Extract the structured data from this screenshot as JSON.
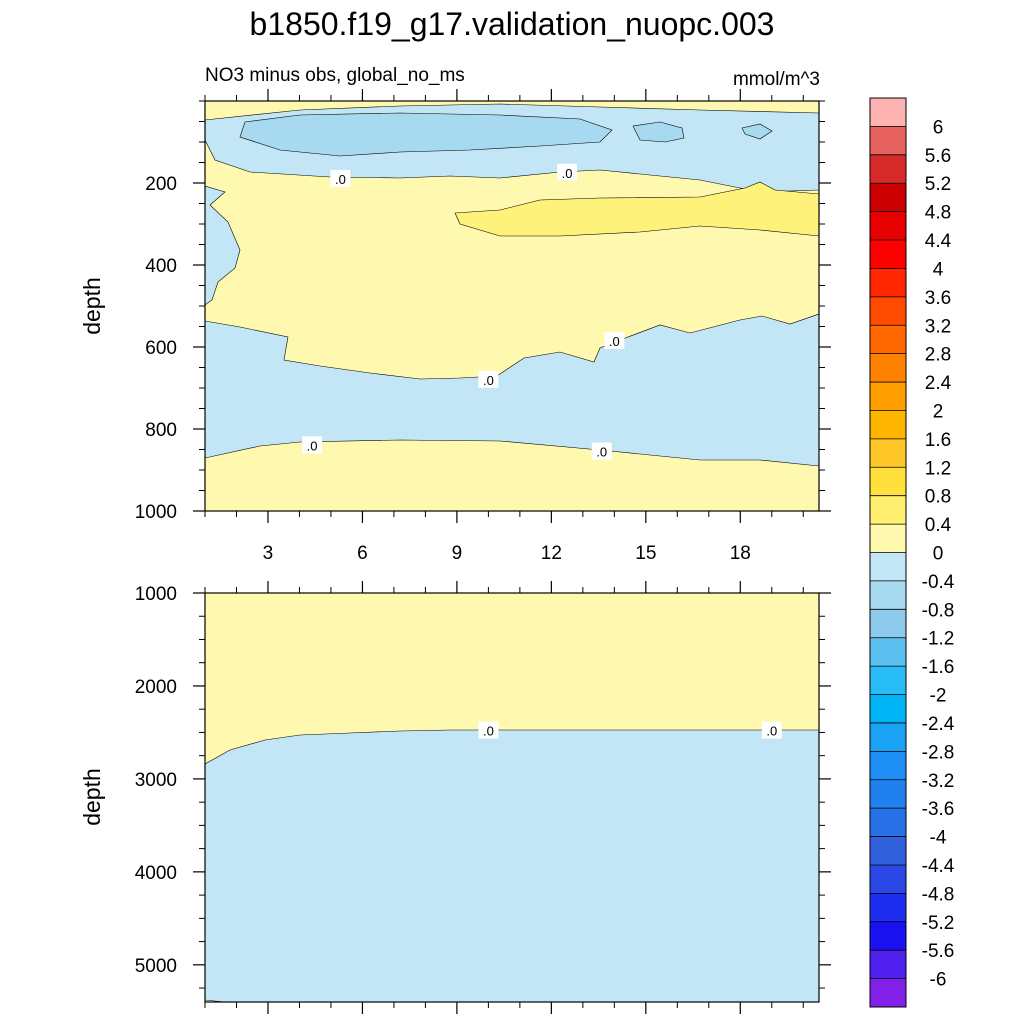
{
  "title": "b1850.f19_g17.validation_nuopc.003",
  "subtitle_left": "NO3 minus obs, global_no_ms",
  "subtitle_right": "mmol/m^3",
  "colors": {
    "neg_fill": "#c2e6f5",
    "neg_deep_fill": "#a7d9f0",
    "pos_fill": "#fff9b0",
    "pos_high_fill": "#fff27a"
  },
  "chart_data": [
    {
      "type": "contour",
      "name": "upper-panel",
      "xlabel": "",
      "ylabel": "depth",
      "xlim": [
        1,
        20.5
      ],
      "ylim": [
        1000,
        0
      ],
      "xticks": [
        3,
        6,
        9,
        12,
        15,
        18
      ],
      "yticks": [
        200,
        400,
        600,
        800,
        1000
      ],
      "contour_labels": [
        {
          "text": ".0",
          "x": 5.3,
          "depth": 190
        },
        {
          "text": ".0",
          "x": 12.5,
          "depth": 175
        },
        {
          "text": ".0",
          "x": 14.0,
          "depth": 585
        },
        {
          "text": ".0",
          "x": 10.0,
          "depth": 680
        },
        {
          "text": ".0",
          "x": 4.4,
          "depth": 840
        },
        {
          "text": ".0",
          "x": 13.6,
          "depth": 855
        }
      ]
    },
    {
      "type": "contour",
      "name": "lower-panel",
      "xlabel": "",
      "ylabel": "depth",
      "xlim": [
        1,
        20.5
      ],
      "ylim": [
        5400,
        1000
      ],
      "xticks": [
        3,
        6,
        9,
        12,
        15,
        18
      ],
      "yticks": [
        1000,
        2000,
        3000,
        4000,
        5000
      ],
      "contour_labels": [
        {
          "text": ".0",
          "x": 10.0,
          "depth": 2480
        },
        {
          "text": ".0",
          "x": 19.0,
          "depth": 2480
        }
      ]
    }
  ],
  "colorbar": {
    "levels": [
      "6",
      "5.6",
      "5.2",
      "4.8",
      "4.4",
      "4",
      "3.6",
      "3.2",
      "2.8",
      "2.4",
      "2",
      "1.6",
      "1.2",
      "0.8",
      "0.4",
      "0",
      "-0.4",
      "-0.8",
      "-1.2",
      "-1.6",
      "-2",
      "-2.4",
      "-2.8",
      "-3.2",
      "-3.6",
      "-4",
      "-4.4",
      "-4.8",
      "-5.2",
      "-5.6",
      "-6"
    ],
    "colors": [
      "#ffb2b2",
      "#e96262",
      "#d72a2a",
      "#cc0000",
      "#e60000",
      "#ff0000",
      "#ff2600",
      "#ff4c00",
      "#ff6a00",
      "#ff8200",
      "#ffa000",
      "#ffb400",
      "#ffc828",
      "#ffe03c",
      "#fff070",
      "#fff9b0",
      "#c2e6f5",
      "#a7d9f0",
      "#8dcbec",
      "#5ec0f0",
      "#29bdf5",
      "#00b5f5",
      "#1aa3f5",
      "#1e90f5",
      "#2080f0",
      "#2870e6",
      "#3060dc",
      "#2a48e6",
      "#1e2ef0",
      "#1a10f0",
      "#5020f0",
      "#8020e8"
    ]
  }
}
